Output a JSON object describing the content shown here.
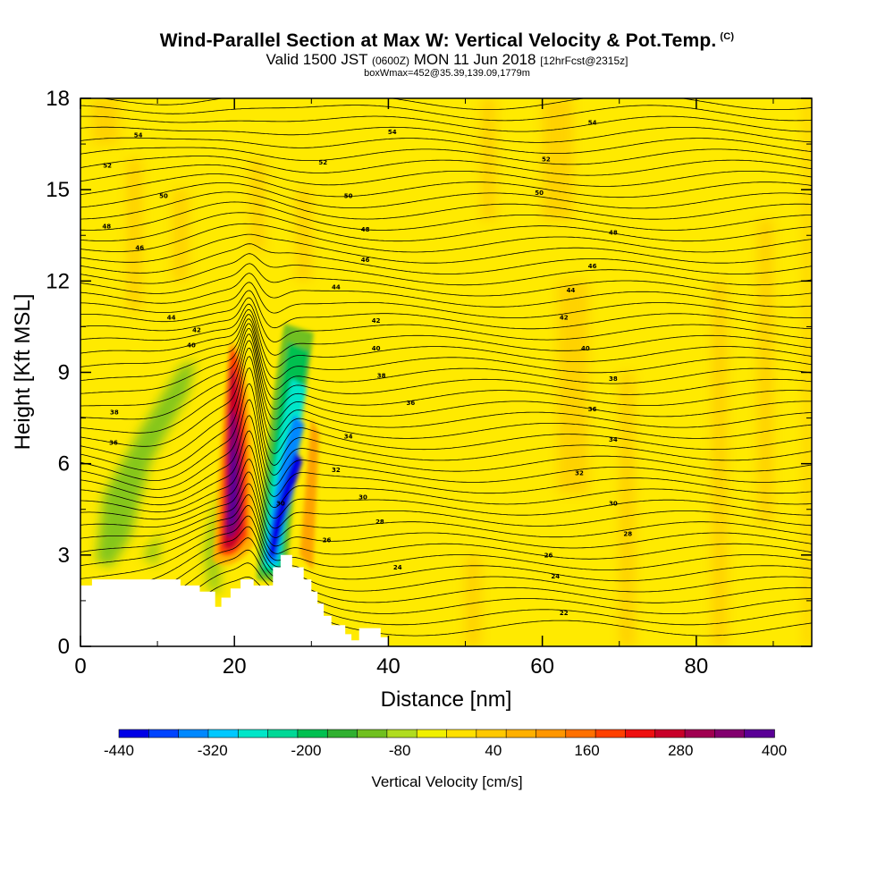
{
  "header": {
    "title": "Wind-Parallel Section at Max W: Vertical Velocity & Pot.Temp.",
    "copyright": "(C)",
    "valid_prefix": "Valid 1500 JST",
    "valid_utc": "(0600Z)",
    "valid_date": "MON 11 Jun 2018",
    "forecast": "[12hrFcst@2315z]",
    "box_info": "boxWmax=452@35.39,139.09,1779m"
  },
  "chart_data": {
    "type": "heatmap",
    "xlabel": "Distance [nm]",
    "ylabel": "Height [Kft MSL]",
    "xlim": [
      0,
      95
    ],
    "ylim": [
      0,
      18
    ],
    "x_ticks": [
      0,
      20,
      40,
      60,
      80
    ],
    "y_ticks": [
      0,
      3,
      6,
      9,
      12,
      15,
      18
    ],
    "grid": false,
    "field": "Vertical Velocity",
    "colorbar": {
      "title": "Vertical Velocity [cm/s]",
      "tick_labels": [
        "-440",
        "-320",
        "-200",
        "-80",
        "40",
        "160",
        "280",
        "400"
      ],
      "tick_values": [
        -440,
        -320,
        -200,
        -80,
        40,
        160,
        280,
        400
      ],
      "bins": [
        -440,
        -400,
        -360,
        -320,
        -280,
        -240,
        -200,
        -160,
        -120,
        -80,
        -40,
        0,
        40,
        80,
        120,
        160,
        200,
        240,
        280,
        320,
        360,
        400
      ],
      "colors": [
        "#0000e6",
        "#0044ff",
        "#0088ff",
        "#00c8ff",
        "#00e6c8",
        "#00d896",
        "#00c050",
        "#30b030",
        "#70c020",
        "#b0dc20",
        "#f0f000",
        "#ffe000",
        "#ffc800",
        "#ffb000",
        "#ff9600",
        "#ff7000",
        "#ff4000",
        "#ee1010",
        "#c80028",
        "#a00050",
        "#82006e",
        "#5a0096"
      ],
      "position": "bottom"
    },
    "background_color": "#ffea00",
    "updraft_max": 452,
    "updraft": {
      "x": 19.8,
      "z_bottom": 3.2,
      "z_top": 9.7,
      "peak_w": 452
    },
    "downdraft": {
      "x": 24.8,
      "z_bottom": 2.4,
      "z_top": 10.0,
      "min_w": -440
    },
    "theta_contours": {
      "interval": 1,
      "labels": [
        {
          "text": "54",
          "x": 7.5,
          "y": 16.8
        },
        {
          "text": "54",
          "x": 40.5,
          "y": 16.9
        },
        {
          "text": "54",
          "x": 66.5,
          "y": 17.2
        },
        {
          "text": "52",
          "x": 3.5,
          "y": 15.8
        },
        {
          "text": "52",
          "x": 31.5,
          "y": 15.9
        },
        {
          "text": "52",
          "x": 60.5,
          "y": 16.0
        },
        {
          "text": "50",
          "x": 10.8,
          "y": 14.8
        },
        {
          "text": "50",
          "x": 34.8,
          "y": 14.8
        },
        {
          "text": "50",
          "x": 59.6,
          "y": 14.9
        },
        {
          "text": "48",
          "x": 3.4,
          "y": 13.8
        },
        {
          "text": "48",
          "x": 37.0,
          "y": 13.7
        },
        {
          "text": "48",
          "x": 69.2,
          "y": 13.6
        },
        {
          "text": "46",
          "x": 7.7,
          "y": 13.1
        },
        {
          "text": "46",
          "x": 37.0,
          "y": 12.7
        },
        {
          "text": "46",
          "x": 66.5,
          "y": 12.5
        },
        {
          "text": "44",
          "x": 33.2,
          "y": 11.8
        },
        {
          "text": "44",
          "x": 63.7,
          "y": 11.7
        },
        {
          "text": "44",
          "x": 11.8,
          "y": 10.8
        },
        {
          "text": "42",
          "x": 15.1,
          "y": 10.4
        },
        {
          "text": "42",
          "x": 38.4,
          "y": 10.7
        },
        {
          "text": "42",
          "x": 62.8,
          "y": 10.8
        },
        {
          "text": "40",
          "x": 14.4,
          "y": 9.9
        },
        {
          "text": "40",
          "x": 38.4,
          "y": 9.8
        },
        {
          "text": "40",
          "x": 65.6,
          "y": 9.8
        },
        {
          "text": "38",
          "x": 39.1,
          "y": 8.9
        },
        {
          "text": "38",
          "x": 69.2,
          "y": 8.8
        },
        {
          "text": "38",
          "x": 4.4,
          "y": 7.7
        },
        {
          "text": "36",
          "x": 42.9,
          "y": 8.0
        },
        {
          "text": "36",
          "x": 66.5,
          "y": 7.8
        },
        {
          "text": "36",
          "x": 4.3,
          "y": 6.7
        },
        {
          "text": "34",
          "x": 34.8,
          "y": 6.9
        },
        {
          "text": "34",
          "x": 69.2,
          "y": 6.8
        },
        {
          "text": "32",
          "x": 33.2,
          "y": 5.8
        },
        {
          "text": "32",
          "x": 64.8,
          "y": 5.7
        },
        {
          "text": "30",
          "x": 26.0,
          "y": 4.7
        },
        {
          "text": "30",
          "x": 36.7,
          "y": 4.9
        },
        {
          "text": "30",
          "x": 69.2,
          "y": 4.7
        },
        {
          "text": "28",
          "x": 38.9,
          "y": 4.1
        },
        {
          "text": "28",
          "x": 71.1,
          "y": 3.7
        },
        {
          "text": "26",
          "x": 32.0,
          "y": 3.5
        },
        {
          "text": "26",
          "x": 60.8,
          "y": 3.0
        },
        {
          "text": "24",
          "x": 41.2,
          "y": 2.6
        },
        {
          "text": "24",
          "x": 61.7,
          "y": 2.3
        },
        {
          "text": "22",
          "x": 62.8,
          "y": 1.1
        }
      ]
    },
    "terrain_profile": [
      [
        0,
        2
      ],
      [
        1.5,
        2
      ],
      [
        1.5,
        2.2
      ],
      [
        13,
        2.2
      ],
      [
        13,
        2.0
      ],
      [
        15.5,
        2.0
      ],
      [
        15.5,
        1.8
      ],
      [
        17.5,
        1.8
      ],
      [
        17.5,
        1.3
      ],
      [
        18.3,
        1.3
      ],
      [
        18.3,
        1.6
      ],
      [
        19.5,
        1.6
      ],
      [
        19.5,
        1.9
      ],
      [
        20.8,
        1.9
      ],
      [
        20.8,
        2.2
      ],
      [
        22.5,
        2.2
      ],
      [
        22.5,
        2.0
      ],
      [
        25,
        2.0
      ],
      [
        25,
        2.6
      ],
      [
        26,
        2.6
      ],
      [
        26,
        3.0
      ],
      [
        27.5,
        3.0
      ],
      [
        27.5,
        2.6
      ],
      [
        29,
        2.6
      ],
      [
        29,
        2.2
      ],
      [
        30,
        2.2
      ],
      [
        30,
        1.8
      ],
      [
        30.8,
        1.8
      ],
      [
        30.8,
        1.4
      ],
      [
        31.6,
        1.4
      ],
      [
        31.6,
        1.0
      ],
      [
        32.6,
        1.0
      ],
      [
        32.6,
        0.7
      ],
      [
        34.4,
        0.7
      ],
      [
        34.4,
        0.4
      ],
      [
        35.2,
        0.4
      ],
      [
        35.2,
        0.2
      ],
      [
        36.2,
        0.2
      ],
      [
        36.2,
        0.6
      ],
      [
        39,
        0.6
      ],
      [
        39,
        0.3
      ],
      [
        40,
        0.3
      ],
      [
        40,
        0
      ]
    ]
  }
}
